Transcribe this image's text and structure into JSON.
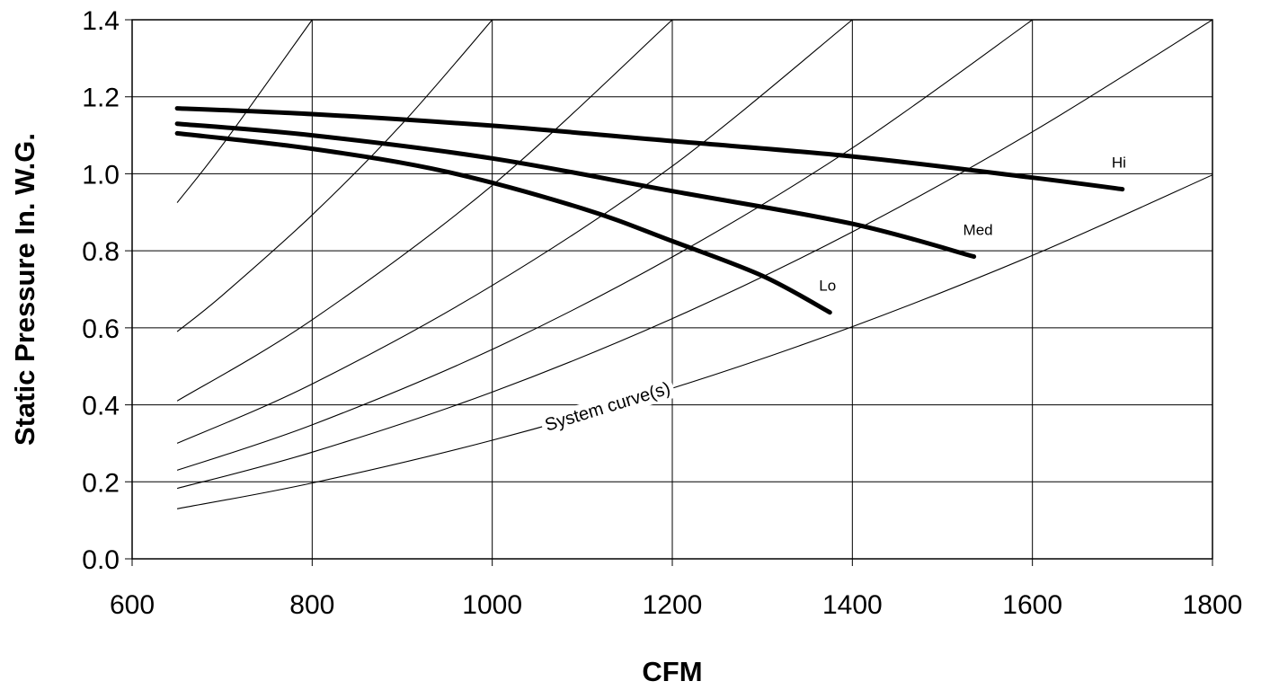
{
  "chart_data": {
    "type": "line",
    "title": "",
    "xlabel": "CFM",
    "ylabel": "Static Pressure In. W.G.",
    "xlim": [
      600,
      1800
    ],
    "ylim": [
      0.0,
      1.4
    ],
    "x_ticks": [
      "600",
      "800",
      "1000",
      "1200",
      "1400",
      "1600",
      "1800"
    ],
    "y_ticks": [
      "0.0",
      "0.2",
      "0.4",
      "0.6",
      "0.8",
      "1.0",
      "1.2",
      "1.4"
    ],
    "grid": true,
    "series": [
      {
        "name": "Hi",
        "points": [
          [
            650,
            1.17
          ],
          [
            800,
            1.155
          ],
          [
            1000,
            1.125
          ],
          [
            1200,
            1.085
          ],
          [
            1400,
            1.045
          ],
          [
            1600,
            0.99
          ],
          [
            1700,
            0.96
          ]
        ]
      },
      {
        "name": "Med",
        "points": [
          [
            650,
            1.13
          ],
          [
            800,
            1.1
          ],
          [
            1000,
            1.04
          ],
          [
            1200,
            0.955
          ],
          [
            1400,
            0.87
          ],
          [
            1535,
            0.785
          ]
        ]
      },
      {
        "name": "Lo",
        "points": [
          [
            650,
            1.105
          ],
          [
            800,
            1.065
          ],
          [
            950,
            1.005
          ],
          [
            1100,
            0.91
          ],
          [
            1200,
            0.825
          ],
          [
            1300,
            0.735
          ],
          [
            1375,
            0.64
          ]
        ]
      }
    ],
    "system_curves": {
      "label": "System curve(s)",
      "curves": [
        {
          "points": [
            [
              650,
              0.925
            ],
            [
              700,
              1.074
            ],
            [
              800,
              1.4
            ]
          ]
        },
        {
          "points": [
            [
              650,
              0.59
            ],
            [
              700,
              0.684
            ],
            [
              800,
              0.893
            ],
            [
              900,
              1.13
            ],
            [
              1000,
              1.4
            ]
          ]
        },
        {
          "points": [
            [
              650,
              0.41
            ],
            [
              800,
              0.621
            ],
            [
              1000,
              0.97
            ],
            [
              1200,
              1.4
            ]
          ]
        },
        {
          "points": [
            [
              650,
              0.3
            ],
            [
              800,
              0.454
            ],
            [
              1000,
              0.71
            ],
            [
              1200,
              1.02
            ],
            [
              1400,
              1.4
            ]
          ]
        },
        {
          "points": [
            [
              650,
              0.23
            ],
            [
              800,
              0.348
            ],
            [
              1000,
              0.544
            ],
            [
              1200,
              0.784
            ],
            [
              1400,
              1.067
            ],
            [
              1600,
              1.4
            ]
          ]
        },
        {
          "points": [
            [
              650,
              0.183
            ],
            [
              800,
              0.277
            ],
            [
              1000,
              0.433
            ],
            [
              1200,
              0.624
            ],
            [
              1400,
              0.849
            ],
            [
              1600,
              1.109
            ],
            [
              1800,
              1.4
            ]
          ]
        },
        {
          "points": [
            [
              650,
              0.13
            ],
            [
              800,
              0.197
            ],
            [
              1000,
              0.308
            ],
            [
              1200,
              0.443
            ],
            [
              1400,
              0.603
            ],
            [
              1600,
              0.788
            ],
            [
              1800,
              0.997
            ]
          ]
        }
      ]
    }
  }
}
